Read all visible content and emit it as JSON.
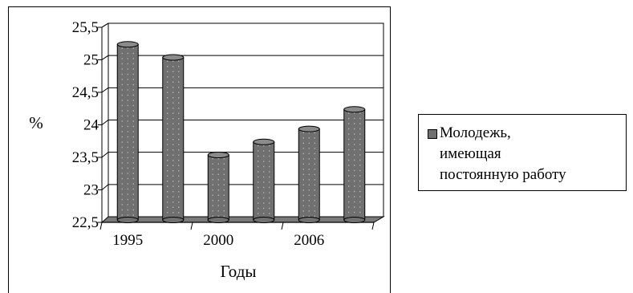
{
  "chart_data": {
    "type": "bar",
    "categories": [
      "1995",
      "",
      "2000",
      "",
      "2006",
      ""
    ],
    "x_tick_labels": [
      "1995",
      "2000",
      "2006"
    ],
    "series": [
      {
        "name": "Молодежь, имеющая постоянную работу",
        "values": [
          25.2,
          25.0,
          23.5,
          23.7,
          23.9,
          24.2
        ],
        "color": "#707070"
      }
    ],
    "yticks": [
      "22,5",
      "23",
      "23,5",
      "24",
      "24,5",
      "25",
      "25,5"
    ],
    "ylim": [
      22.5,
      25.5
    ],
    "ylabel": "%",
    "xlabel": "Годы",
    "grid": true,
    "legend": "right"
  },
  "legend": {
    "lines": [
      "Молодежь,",
      "имеющая",
      "постоянную работу"
    ]
  }
}
